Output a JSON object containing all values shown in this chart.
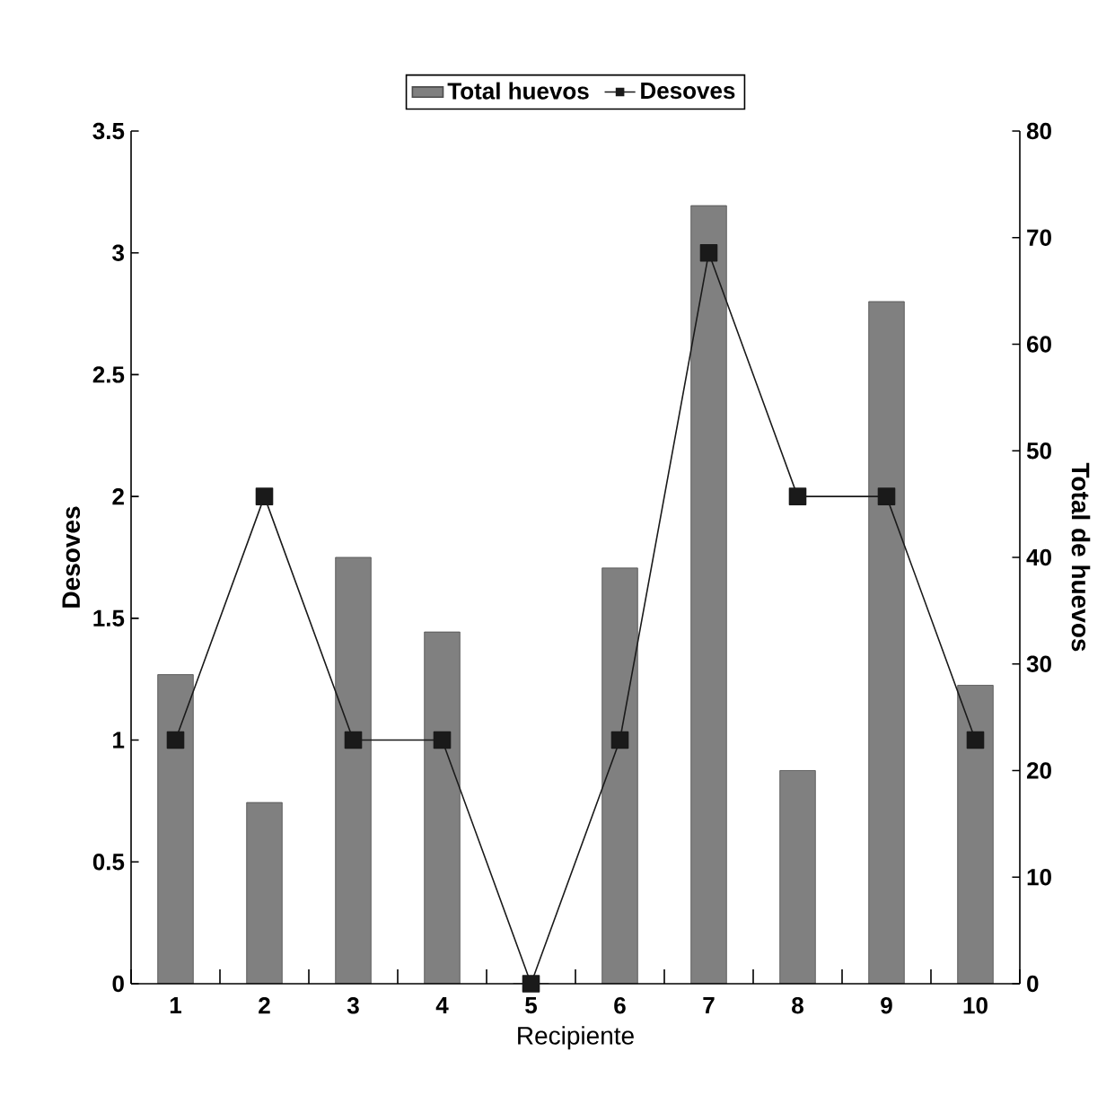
{
  "chart_data": {
    "type": "bar",
    "xlabel": "Recipiente",
    "ylabel": "Desoves",
    "y2label": "Total de huevos",
    "categories": [
      "1",
      "2",
      "3",
      "4",
      "5",
      "6",
      "7",
      "8",
      "9",
      "10"
    ],
    "series": [
      {
        "name": "Total huevos",
        "axis": "y2",
        "color": "#808080",
        "values": [
          29,
          17,
          40,
          33,
          0,
          39,
          73,
          20,
          64,
          28
        ]
      },
      {
        "name": "Desoves",
        "type": "line",
        "color": "#1a1a1a",
        "values": [
          1,
          2,
          1,
          1,
          0,
          1,
          3,
          2,
          2,
          1
        ]
      }
    ],
    "ylim": [
      0,
      3.5
    ],
    "yticks": [
      0,
      0.5,
      1,
      1.5,
      2,
      2.5,
      3,
      3.5
    ],
    "y2lim": [
      0,
      80
    ],
    "y2ticks": [
      0,
      10,
      20,
      30,
      40,
      50,
      60,
      70,
      80
    ],
    "marker": "square",
    "line_style": "solid",
    "legend": "top",
    "grid": false
  }
}
